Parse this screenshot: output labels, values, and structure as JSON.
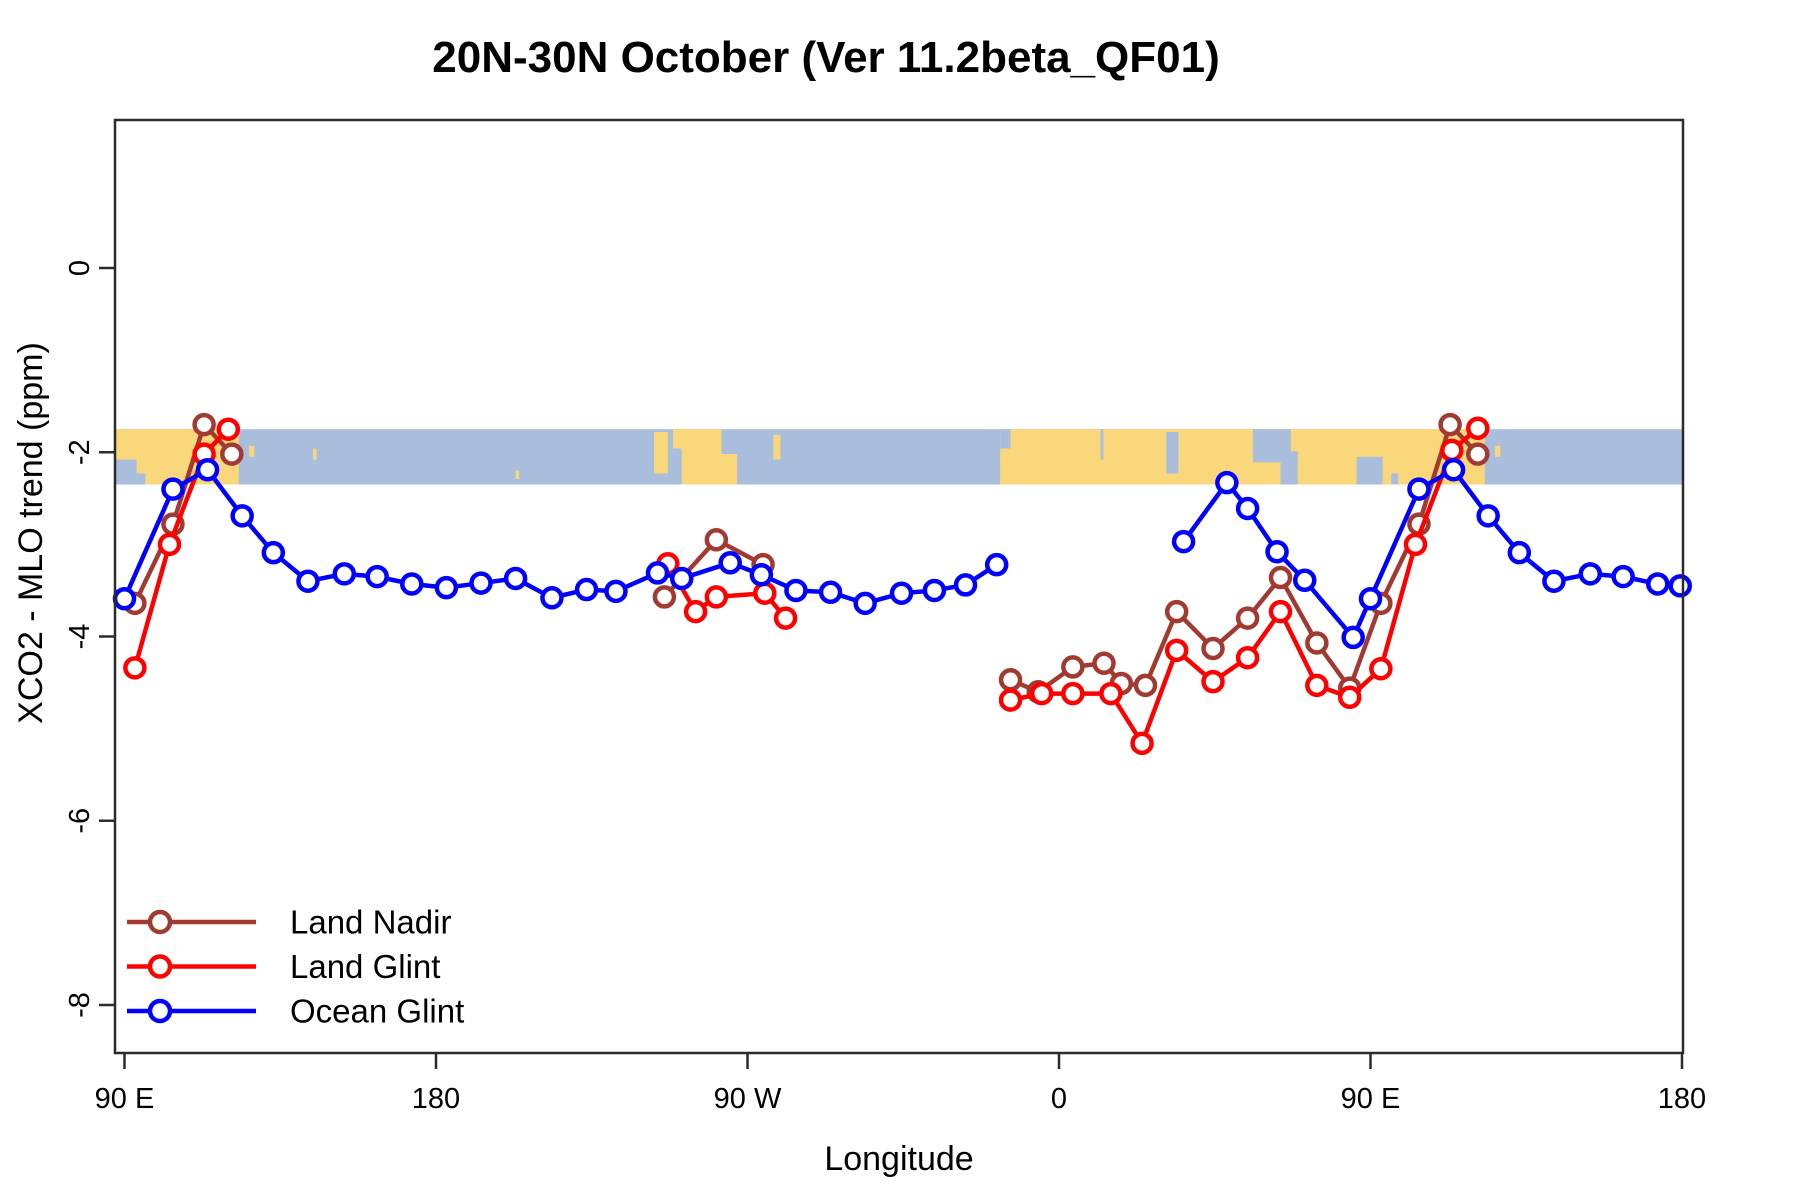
{
  "chart_data": {
    "type": "line",
    "title": "20N-30N October (Ver 11.2beta_QF01)",
    "xlabel": "Longitude",
    "ylabel": "XCO2 - MLO trend (ppm)",
    "grid": false,
    "legend_position": "bottom-left",
    "x_axis": {
      "ticks": [
        90,
        180,
        270,
        360,
        450,
        540
      ],
      "tick_labels": [
        "90 E",
        "180",
        "90 W",
        "0",
        "90 E",
        "180"
      ],
      "range": [
        87.25,
        540.3
      ],
      "note": "longitude wraps: 90E eastward through 180, 90W, 0, 90E, 180"
    },
    "y_axis": {
      "ticks": [
        0,
        -2,
        -4,
        -6,
        -8
      ],
      "tick_labels": [
        "0",
        "-2",
        "-4",
        "-6",
        "-8"
      ],
      "range": [
        1.6,
        -8.6
      ]
    },
    "band": {
      "description": "land/ocean map strip for 20N-30N latitude belt",
      "value_top": -1.75,
      "value_bottom": -2.35,
      "ocean_color": "#A8BEDC",
      "land_color": "#FBD77C",
      "segments": [
        {
          "from": 87.25,
          "to": 123,
          "type": "land"
        },
        {
          "from": 87.25,
          "to": 93.5,
          "type": "ocean",
          "top": 0.55,
          "bottom": 1
        },
        {
          "from": 93.5,
          "to": 96,
          "type": "ocean",
          "top": 0.8,
          "bottom": 1
        },
        {
          "from": 126,
          "to": 127.5,
          "type": "land",
          "top": 0.3,
          "bottom": 0.5
        },
        {
          "from": 144.5,
          "to": 145.5,
          "type": "land",
          "top": 0.35,
          "bottom": 0.55
        },
        {
          "from": 203,
          "to": 204,
          "type": "land",
          "top": 0.75,
          "bottom": 0.9
        },
        {
          "from": 243,
          "to": 247,
          "type": "land",
          "top": 0.05,
          "bottom": 0.8
        },
        {
          "from": 248.5,
          "to": 262.5,
          "type": "land"
        },
        {
          "from": 248.5,
          "to": 251,
          "type": "ocean",
          "top": 0.35,
          "bottom": 1
        },
        {
          "from": 262.5,
          "to": 267,
          "type": "land",
          "top": 0.45,
          "bottom": 1
        },
        {
          "from": 277.5,
          "to": 279.5,
          "type": "land",
          "top": 0.1,
          "bottom": 0.55
        },
        {
          "from": 343,
          "to": 483,
          "type": "land"
        },
        {
          "from": 343,
          "to": 346,
          "type": "ocean",
          "top": 0,
          "bottom": 0.35
        },
        {
          "from": 372,
          "to": 372.8,
          "type": "ocean",
          "top": 0,
          "bottom": 0.55
        },
        {
          "from": 391,
          "to": 394.5,
          "type": "ocean",
          "top": 0.05,
          "bottom": 0.8
        },
        {
          "from": 416,
          "to": 427,
          "type": "ocean",
          "top": 0,
          "bottom": 0.6
        },
        {
          "from": 424,
          "to": 429,
          "type": "ocean",
          "top": 0.4,
          "bottom": 1
        },
        {
          "from": 446,
          "to": 453.5,
          "type": "ocean",
          "top": 0.5,
          "bottom": 1
        },
        {
          "from": 456,
          "to": 458,
          "type": "ocean",
          "top": 0.8,
          "bottom": 1
        },
        {
          "from": 486,
          "to": 487.5,
          "type": "land",
          "top": 0.3,
          "bottom": 0.5
        }
      ]
    },
    "series": [
      {
        "name": "Land Nadir",
        "color": "#A13A31",
        "segments": [
          [
            [
              93,
              -3.64
            ],
            [
              104,
              -2.78
            ],
            [
              113,
              -1.7
            ],
            [
              121,
              -2.02
            ]
          ],
          [
            [
              246,
              -3.57
            ],
            [
              261,
              -2.95
            ],
            [
              274.5,
              -3.22
            ]
          ],
          [
            [
              346,
              -4.47
            ],
            [
              354,
              -4.6
            ],
            [
              364,
              -4.33
            ],
            [
              373,
              -4.29
            ],
            [
              378,
              -4.51
            ],
            [
              385,
              -4.53
            ],
            [
              394,
              -3.73
            ],
            [
              404.5,
              -4.13
            ],
            [
              414.5,
              -3.8
            ],
            [
              424,
              -3.36
            ],
            [
              434.5,
              -4.07
            ],
            [
              444,
              -4.56
            ],
            [
              453,
              -3.64
            ],
            [
              464,
              -2.78
            ],
            [
              473,
              -1.7
            ],
            [
              481,
              -2.02
            ]
          ]
        ]
      },
      {
        "name": "Land Glint",
        "color": "#FF0000",
        "segments": [
          [
            [
              93,
              -4.34
            ],
            [
              103,
              -3.0
            ],
            [
              113,
              -2.02
            ],
            [
              120,
              -1.75
            ]
          ],
          [
            [
              247,
              -3.21
            ],
            [
              255,
              -3.73
            ],
            [
              261,
              -3.57
            ],
            [
              275,
              -3.53
            ],
            [
              281,
              -3.8
            ]
          ],
          [
            [
              346,
              -4.69
            ],
            [
              355,
              -4.62
            ],
            [
              364,
              -4.62
            ],
            [
              375,
              -4.62
            ],
            [
              384,
              -5.16
            ],
            [
              394,
              -4.15
            ],
            [
              404.5,
              -4.49
            ],
            [
              414.5,
              -4.23
            ],
            [
              424,
              -3.73
            ],
            [
              434.5,
              -4.53
            ],
            [
              444,
              -4.66
            ],
            [
              453,
              -4.35
            ],
            [
              463,
              -3.0
            ],
            [
              473.5,
              -1.98
            ],
            [
              481,
              -1.74
            ]
          ]
        ]
      },
      {
        "name": "Ocean Glint",
        "color": "#0000FF",
        "segments": [
          [
            [
              90,
              -3.59
            ],
            [
              104,
              -2.4
            ],
            [
              114,
              -2.19
            ],
            [
              124,
              -2.69
            ],
            [
              133,
              -3.09
            ],
            [
              143,
              -3.4
            ],
            [
              153.5,
              -3.32
            ],
            [
              163,
              -3.35
            ],
            [
              173,
              -3.43
            ],
            [
              183,
              -3.47
            ],
            [
              193,
              -3.42
            ],
            [
              203,
              -3.37
            ],
            [
              213.5,
              -3.58
            ],
            [
              223.5,
              -3.49
            ],
            [
              232,
              -3.51
            ],
            [
              244,
              -3.31
            ],
            [
              251,
              -3.37
            ],
            [
              265,
              -3.2
            ],
            [
              274,
              -3.33
            ],
            [
              284,
              -3.5
            ],
            [
              294,
              -3.52
            ],
            [
              304,
              -3.64
            ],
            [
              314.5,
              -3.53
            ],
            [
              324,
              -3.5
            ],
            [
              333,
              -3.44
            ],
            [
              342,
              -3.22
            ]
          ],
          [
            [
              396,
              -2.97
            ],
            [
              408.5,
              -2.33
            ],
            [
              414.5,
              -2.61
            ],
            [
              423,
              -3.08
            ],
            [
              431,
              -3.39
            ],
            [
              445,
              -4.01
            ],
            [
              450,
              -3.59
            ],
            [
              464,
              -2.4
            ],
            [
              474,
              -2.19
            ],
            [
              484,
              -2.69
            ],
            [
              493,
              -3.09
            ],
            [
              503,
              -3.4
            ],
            [
              513.5,
              -3.32
            ],
            [
              523,
              -3.35
            ],
            [
              533,
              -3.43
            ],
            [
              539.5,
              -3.45
            ]
          ]
        ]
      }
    ],
    "axis_color": "#2B2B2B"
  }
}
